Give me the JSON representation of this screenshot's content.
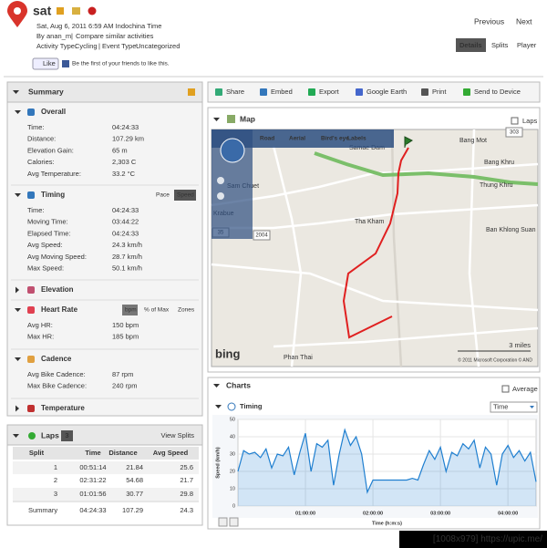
{
  "header": {
    "title": "sat",
    "date": "Sat, Aug 6, 2011 6:59 AM Indochina Time",
    "by": "By",
    "user": "anan_m",
    "separator": "|",
    "compare": "Compare similar activities",
    "activity_type_label": "Activity Type:",
    "activity_type": "Cycling",
    "event_type_label": "Event Type:",
    "event_type": "Uncategorized",
    "like": "Like",
    "like_text": "Be the first of your friends to like this."
  },
  "nav": {
    "previous": "Previous",
    "next": "Next"
  },
  "tabs": [
    "Details",
    "Splits",
    "Player"
  ],
  "toolbar": [
    "Share",
    "Embed",
    "Export",
    "Google Earth",
    "Print",
    "Send to Device"
  ],
  "summary": {
    "title": "Summary",
    "sections": [
      {
        "title": "Overall",
        "rows": [
          [
            "Time:",
            "04:24:33"
          ],
          [
            "Distance:",
            "107.29 km"
          ],
          [
            "Elevation Gain:",
            "65 m"
          ],
          [
            "Calories:",
            "2,303 C"
          ],
          [
            "Avg Temperature:",
            "33.2 °C"
          ]
        ]
      },
      {
        "title": "Timing",
        "toggles": [
          "Pace",
          "Speed"
        ],
        "rows": [
          [
            "Time:",
            "04:24:33"
          ],
          [
            "Moving Time:",
            "03:44:22"
          ],
          [
            "Elapsed Time:",
            "04:24:33"
          ],
          [
            "Avg Speed:",
            "24.3 km/h"
          ],
          [
            "Avg Moving Speed:",
            "28.7 km/h"
          ],
          [
            "Max Speed:",
            "50.1 km/h"
          ]
        ]
      },
      {
        "title": "Elevation"
      },
      {
        "title": "Heart Rate",
        "toggles": [
          "bpm",
          "% of Max",
          "Zones"
        ],
        "rows": [
          [
            "Avg HR:",
            "150 bpm"
          ],
          [
            "Max HR:",
            "185 bpm"
          ]
        ]
      },
      {
        "title": "Cadence",
        "rows": [
          [
            "Avg Bike Cadence:",
            "87 rpm"
          ],
          [
            "Max Bike Cadence:",
            "240 rpm"
          ]
        ]
      },
      {
        "title": "Temperature"
      }
    ]
  },
  "laps": {
    "title": "Laps",
    "count": "3",
    "view": "View Splits",
    "columns": [
      "Split",
      "Time",
      "Distance",
      "Avg Speed"
    ],
    "rows": [
      [
        "1",
        "00:51:14",
        "21.84",
        "25.6"
      ],
      [
        "2",
        "02:31:22",
        "54.68",
        "21.7"
      ],
      [
        "3",
        "01:01:56",
        "30.77",
        "29.8"
      ],
      [
        "Summary",
        "04:24:33",
        "107.29",
        "24.3"
      ]
    ]
  },
  "map": {
    "title": "Map",
    "laps": "Laps",
    "modes": [
      "Road",
      "Aerial",
      "Bird's eye",
      "Labels"
    ],
    "places": [
      "Samae Dam",
      "Bang Mot",
      "Bang Khru",
      "Thung Khru",
      "Sam Chuet",
      "Krabue",
      "Tha Kham",
      "Ban Khlong Suan",
      "Phan Thai"
    ],
    "roads": [
      "303",
      "2004",
      "35"
    ],
    "scale": "3 miles",
    "logo": "bing",
    "copyright": "© 2011 Microsoft Corporation © AND"
  },
  "charts": {
    "title": "Charts",
    "average": "Average",
    "timing": "Timing",
    "selector": "Time"
  },
  "chart_data": {
    "type": "line",
    "y_label": "Speed (km/h)",
    "x_label": "Time (h:m:s)",
    "color": "#1f7fd0",
    "x": [
      0,
      300,
      600,
      900,
      1200,
      1500,
      1800,
      2100,
      2400,
      2700,
      3000,
      3300,
      3600,
      3900,
      4200,
      4500,
      4800,
      5100,
      5400,
      5700,
      6000,
      6300,
      6600,
      6900,
      7200,
      7500,
      7800,
      8100,
      8400,
      8700,
      9000,
      9300,
      9600,
      9900,
      10200,
      10500,
      10800,
      11100,
      11400,
      11700,
      12000,
      12300,
      12600,
      12900,
      13200,
      13500,
      13800,
      14100,
      14400,
      14700,
      15000,
      15300,
      15600,
      15900
    ],
    "values": [
      20,
      32,
      30,
      31,
      28,
      33,
      22,
      30,
      29,
      34,
      18,
      31,
      42,
      20,
      36,
      34,
      38,
      12,
      30,
      44,
      35,
      40,
      30,
      8,
      15,
      15,
      15,
      15,
      15,
      15,
      15,
      16,
      15,
      24,
      32,
      27,
      34,
      20,
      31,
      29,
      36,
      33,
      38,
      22,
      34,
      30,
      12,
      30,
      35,
      28,
      32,
      26,
      31,
      14
    ],
    "xlim": [
      0,
      15900
    ],
    "xticks": [
      {
        "value": 3600,
        "label": "01:00:00"
      },
      {
        "value": 7200,
        "label": "02:00:00"
      },
      {
        "value": 10800,
        "label": "03:00:00"
      },
      {
        "value": 14400,
        "label": "04:00:00"
      }
    ],
    "ylim": [
      0,
      50
    ],
    "yticks": [
      0,
      10,
      20,
      30,
      40,
      50
    ],
    "grid": true
  },
  "watermark": "[1008x979] https://upic.me/"
}
